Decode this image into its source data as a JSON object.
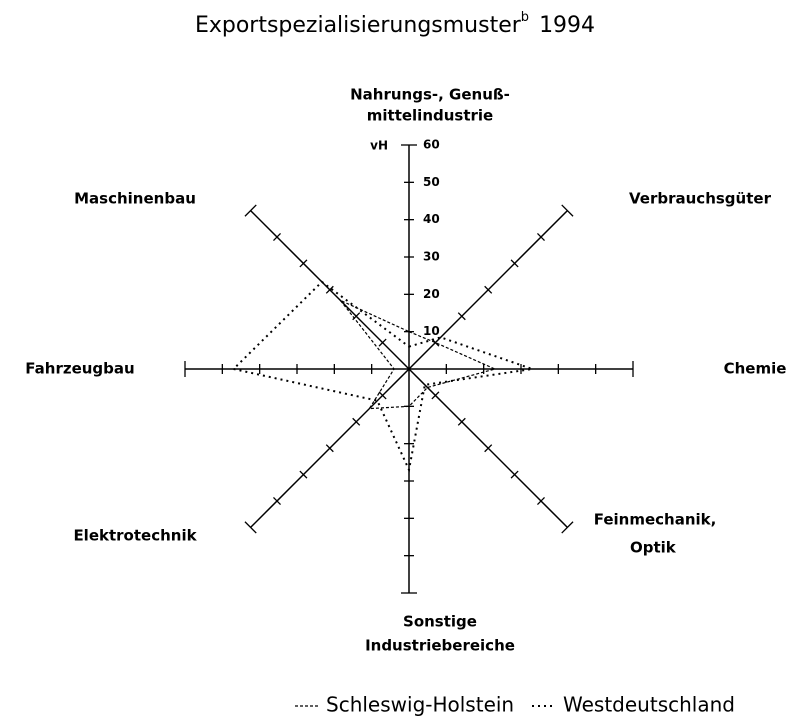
{
  "chart_data": {
    "type": "radar",
    "title": "Exportspezialisierungsmuster",
    "title_superscript": "b",
    "title_year": "1994",
    "unit": "vH",
    "categories": [
      [
        "Nahrungs-, Genuß-",
        "mittelindustrie"
      ],
      [
        "Verbrauchsgüter"
      ],
      [
        "Chemie"
      ],
      [
        "Feinmechanik,",
        "Optik"
      ],
      [
        "Sonstige",
        "Industriebereiche"
      ],
      [
        "Elektrotechnik"
      ],
      [
        "Fahrzeugbau"
      ],
      [
        "Maschinenbau"
      ]
    ],
    "rlim": [
      0,
      60
    ],
    "rticks": [
      10,
      20,
      30,
      40,
      50,
      60
    ],
    "series": [
      {
        "name": "Schleswig-Holstein",
        "color": "#000000",
        "dash": "dashed",
        "values": [
          10,
          10,
          23,
          7,
          10,
          15,
          4,
          26
        ]
      },
      {
        "name": "Westdeutschland",
        "color": "#000000",
        "dash": "dotted",
        "values": [
          6,
          12,
          33,
          6,
          27,
          12,
          47,
          33
        ]
      }
    ]
  }
}
